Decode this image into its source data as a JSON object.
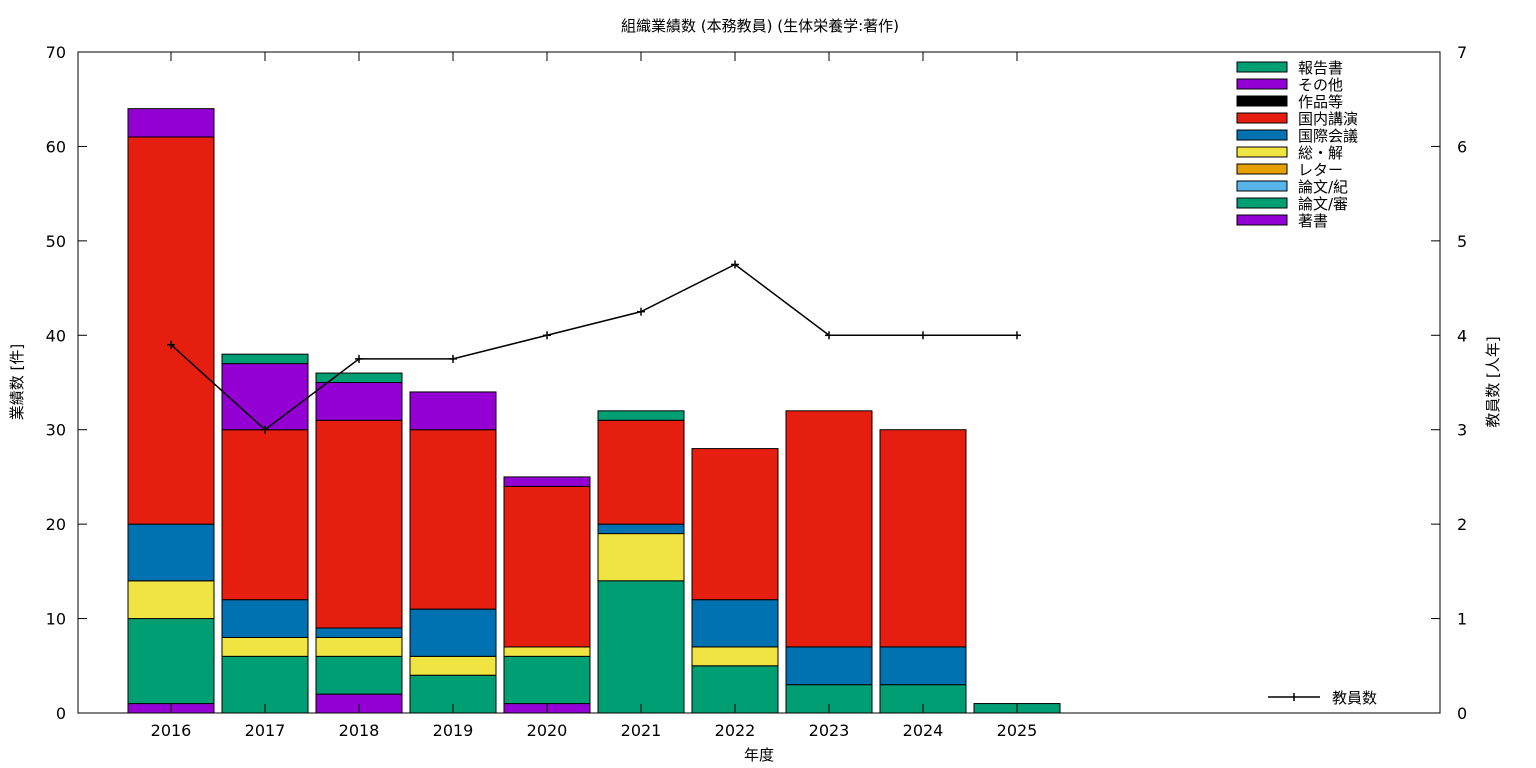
{
  "chart_data": {
    "type": "bar",
    "stacked": true,
    "title": "組織業績数 (本務教員) (生体栄養学:著作)",
    "xlabel": "年度",
    "ylabel": "業績数 [件]",
    "y2label": "教員数 [人年]",
    "categories": [
      "2016",
      "2017",
      "2018",
      "2019",
      "2020",
      "2021",
      "2022",
      "2023",
      "2024",
      "2025"
    ],
    "ylim": [
      0,
      70
    ],
    "y2lim": [
      0,
      7
    ],
    "yticks": [
      "0",
      "10",
      "20",
      "30",
      "40",
      "50",
      "60",
      "70"
    ],
    "y2ticks": [
      "0",
      "1",
      "2",
      "3",
      "4",
      "5",
      "6",
      "7"
    ],
    "legend_position": "top-right",
    "series": [
      {
        "name": "著書",
        "color": "#9400d3",
        "values": [
          1,
          0,
          2,
          0,
          1,
          0,
          0,
          0,
          0,
          0
        ]
      },
      {
        "name": "論文/審",
        "color": "#009e73",
        "values": [
          9,
          6,
          4,
          4,
          5,
          14,
          5,
          3,
          3,
          1
        ]
      },
      {
        "name": "論文/紀",
        "color": "#56b4e9",
        "values": [
          0,
          0,
          0,
          0,
          0,
          0,
          0,
          0,
          0,
          0
        ]
      },
      {
        "name": "レター",
        "color": "#e69f00",
        "values": [
          0,
          0,
          0,
          0,
          0,
          0,
          0,
          0,
          0,
          0
        ]
      },
      {
        "name": "総・解",
        "color": "#f0e442",
        "values": [
          4,
          2,
          2,
          2,
          1,
          5,
          2,
          0,
          0,
          0
        ]
      },
      {
        "name": "国際会議",
        "color": "#0072b2",
        "values": [
          6,
          4,
          1,
          5,
          0,
          1,
          5,
          4,
          4,
          0
        ]
      },
      {
        "name": "国内講演",
        "color": "#e51e10",
        "values": [
          41,
          18,
          22,
          19,
          17,
          11,
          16,
          25,
          23,
          0
        ]
      },
      {
        "name": "作品等",
        "color": "#000000",
        "values": [
          0,
          0,
          0,
          0,
          0,
          0,
          0,
          0,
          0,
          0
        ]
      },
      {
        "name": "その他",
        "color": "#9400d3",
        "values": [
          3,
          7,
          4,
          4,
          1,
          0,
          0,
          0,
          0,
          0
        ]
      },
      {
        "name": "報告書",
        "color": "#009e73",
        "values": [
          0,
          1,
          1,
          0,
          0,
          1,
          0,
          0,
          0,
          0
        ]
      }
    ],
    "line_series": {
      "name": "教員数",
      "color": "#000000",
      "axis": "y2",
      "values": [
        3.9,
        3.0,
        3.75,
        3.75,
        4.0,
        4.25,
        4.75,
        4.0,
        4.0,
        4.0
      ]
    }
  }
}
